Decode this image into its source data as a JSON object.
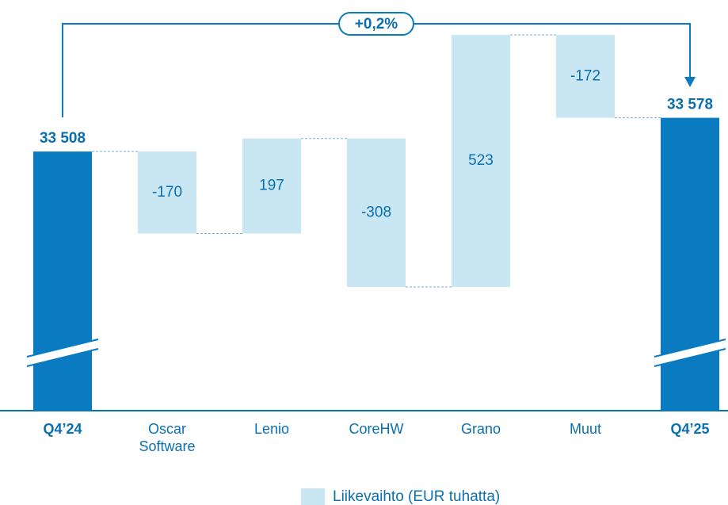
{
  "chart_data": {
    "type": "waterfall",
    "categories": [
      "Q4’24",
      "Oscar Software",
      "Lenio",
      "CoreHW",
      "Grano",
      "Muut",
      "Q4’25"
    ],
    "values": [
      33508,
      -170,
      197,
      -308,
      523,
      -172,
      33578
    ],
    "value_labels": [
      "33 508",
      "-170",
      "197",
      "-308",
      "523",
      "-172",
      "33 578"
    ],
    "color": "#c9e6f3",
    "total_color": "#0a7bc1",
    "annotation": "+0,2%",
    "legend": "Liikevaihto (EUR tuhatta)"
  }
}
